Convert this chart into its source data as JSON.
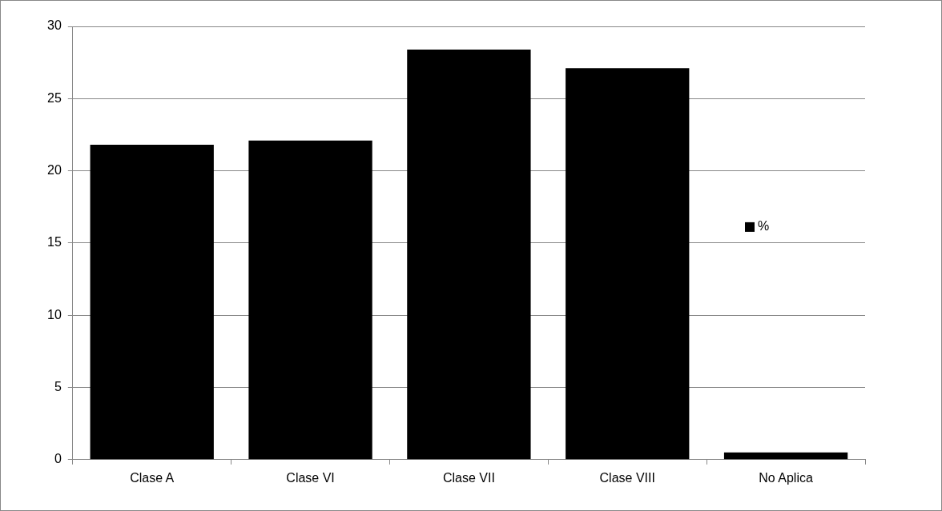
{
  "chart_data": {
    "type": "bar",
    "categories": [
      "Clase A",
      "Clase VI",
      "Clase VII",
      "Clase VIII",
      "No Aplica"
    ],
    "series": [
      {
        "name": "%",
        "color": "#000000",
        "values": [
          21.8,
          22.1,
          28.4,
          27.1,
          0.5
        ]
      }
    ],
    "ylim": [
      0,
      30
    ],
    "yticks": [
      0,
      5,
      10,
      15,
      20,
      25,
      30
    ],
    "grid": "y",
    "legend": "right"
  }
}
